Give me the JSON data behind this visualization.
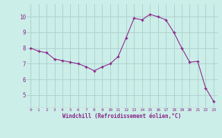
{
  "x": [
    0,
    1,
    2,
    3,
    4,
    5,
    6,
    7,
    8,
    9,
    10,
    11,
    12,
    13,
    14,
    15,
    16,
    17,
    18,
    19,
    20,
    21,
    22,
    23
  ],
  "y": [
    8.0,
    7.8,
    7.7,
    7.3,
    7.2,
    7.1,
    7.0,
    6.8,
    6.55,
    6.8,
    7.0,
    7.45,
    8.65,
    9.9,
    9.8,
    10.15,
    10.0,
    9.8,
    9.0,
    8.0,
    7.1,
    7.15,
    5.45,
    4.6
  ],
  "line_color": "#882288",
  "marker_color": "#882288",
  "bg_color": "#cceee8",
  "grid_color": "#aacccc",
  "xlabel": "Windchill (Refroidissement éolien,°C)",
  "xlabel_color": "#882288",
  "tick_color": "#882288",
  "ylim": [
    4.2,
    10.8
  ],
  "xlim": [
    -0.5,
    23.5
  ],
  "yticks": [
    5,
    6,
    7,
    8,
    9,
    10
  ],
  "xticks": [
    0,
    1,
    2,
    3,
    4,
    5,
    6,
    7,
    8,
    9,
    10,
    11,
    12,
    13,
    14,
    15,
    16,
    17,
    18,
    19,
    20,
    21,
    22,
    23
  ],
  "figsize": [
    3.2,
    2.0
  ],
  "dpi": 100
}
